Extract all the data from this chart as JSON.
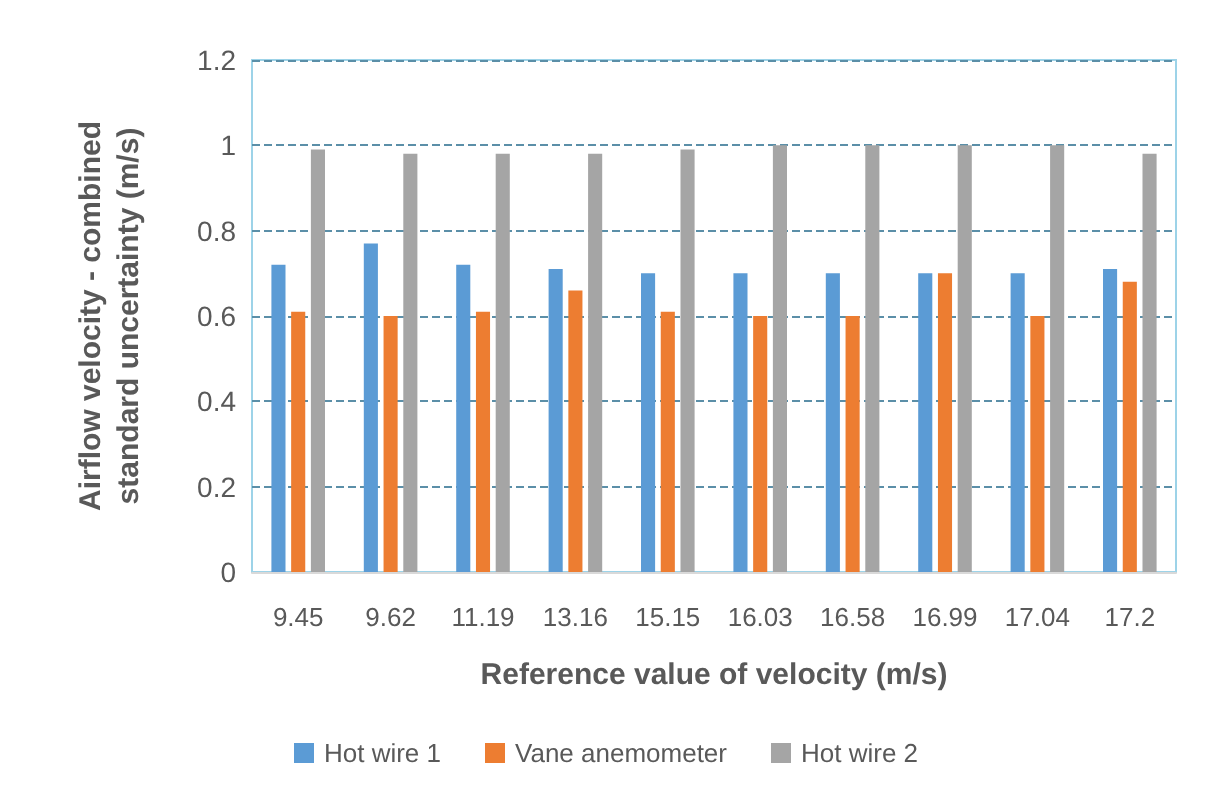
{
  "chart_data": {
    "type": "bar",
    "xlabel": "Reference value of velocity (m/s)",
    "ylabel": "Airflow velocity - combined\nstandard uncertainty (m/s)",
    "categories": [
      "9.45",
      "9.62",
      "11.19",
      "13.16",
      "15.15",
      "16.03",
      "16.58",
      "16.99",
      "17.04",
      "17.2"
    ],
    "series": [
      {
        "name": "Hot wire 1",
        "color": "#5b9bd5",
        "values": [
          0.72,
          0.77,
          0.72,
          0.71,
          0.7,
          0.7,
          0.7,
          0.7,
          0.7,
          0.71
        ]
      },
      {
        "name": "Vane anemometer",
        "color": "#ed7d31",
        "values": [
          0.61,
          0.6,
          0.61,
          0.66,
          0.61,
          0.6,
          0.6,
          0.7,
          0.6,
          0.68
        ]
      },
      {
        "name": "Hot wire 2",
        "color": "#a5a5a5",
        "values": [
          0.99,
          0.98,
          0.98,
          0.98,
          0.99,
          1.0,
          1.0,
          1.0,
          1.0,
          0.98
        ]
      }
    ],
    "ylim": [
      0,
      1.2
    ],
    "yticks": [
      0,
      0.2,
      0.4,
      0.6,
      0.8,
      1,
      1.2
    ],
    "grid": "y",
    "legend": "bottom"
  }
}
